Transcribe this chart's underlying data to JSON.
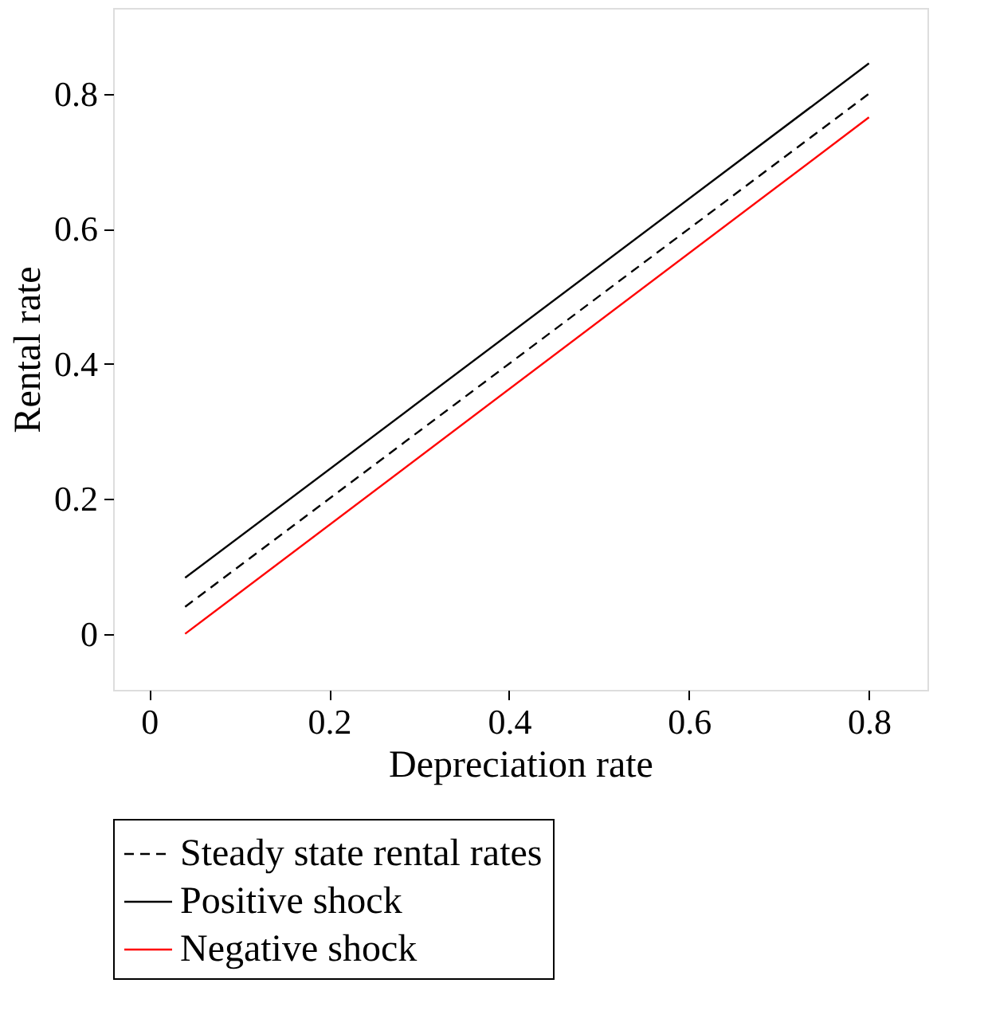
{
  "chart_data": {
    "type": "line",
    "xlabel": "Depreciation rate",
    "ylabel": "Rental rate",
    "xlim": [
      -0.04,
      0.865
    ],
    "ylim": [
      -0.083,
      0.927
    ],
    "xticks": [
      0,
      0.2,
      0.4,
      0.6,
      0.8
    ],
    "yticks": [
      0,
      0.2,
      0.4,
      0.6,
      0.8
    ],
    "grid": false,
    "legend": "bottom",
    "marker": "none",
    "x": [
      0.04,
      0.8
    ],
    "series": [
      {
        "name": "Steady state rental rates",
        "color": "#000000",
        "line_style": "dashed",
        "values": [
          0.04,
          0.8
        ]
      },
      {
        "name": "Positive shock",
        "color": "#000000",
        "line_style": "solid",
        "values": [
          0.083,
          0.845
        ]
      },
      {
        "name": "Negative shock",
        "color": "#ff0000",
        "line_style": "solid",
        "values": [
          0.0,
          0.765
        ]
      }
    ]
  }
}
